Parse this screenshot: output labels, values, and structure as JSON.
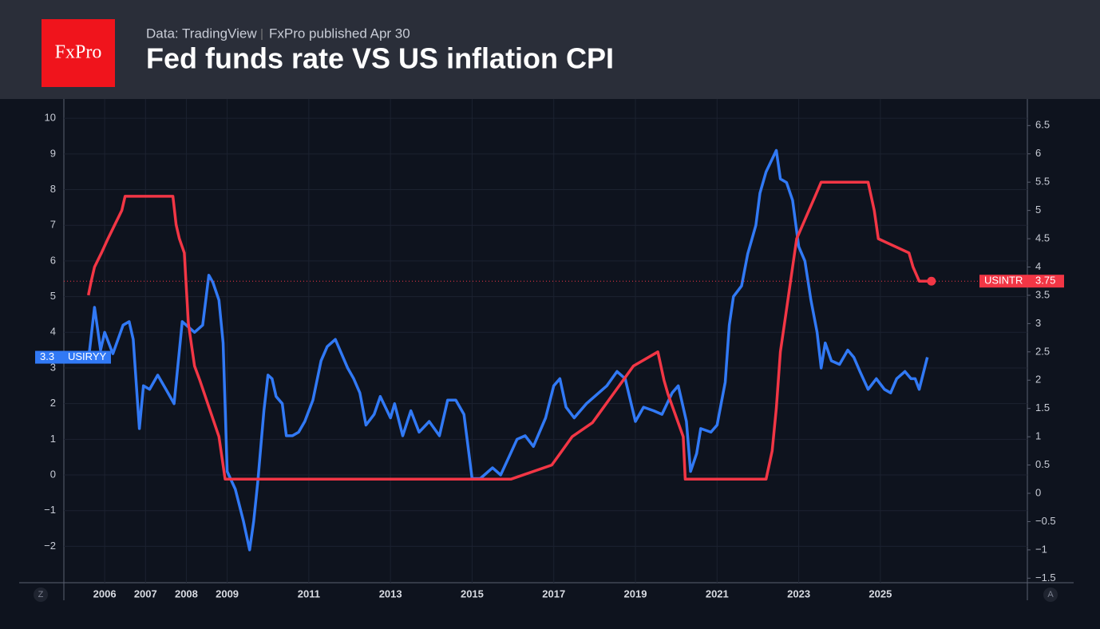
{
  "header": {
    "logo": "FxPro",
    "source": "Data: TradingView",
    "published": "FxPro published Apr 30",
    "title": "Fed funds rate VS US inflation CPI"
  },
  "controls": {
    "left": "Z",
    "right": "A"
  },
  "chart_data": {
    "type": "line",
    "xlim": [
      2005.0,
      2028.6
    ],
    "xticks": [
      2006,
      2007,
      2008,
      2009,
      2011,
      2013,
      2015,
      2017,
      2019,
      2021,
      2023,
      2025
    ],
    "ylim": [
      -3.02,
      10.54
    ],
    "yticks": [
      {
        "value": -2,
        "label": "−2"
      },
      {
        "value": -1,
        "label": "−1"
      },
      0,
      1,
      2,
      3,
      4,
      5,
      6,
      7,
      8,
      9,
      10
    ],
    "y2lim": [
      -1.58,
      6.97
    ],
    "y2ticks": [
      {
        "value": -1.5,
        "label": "−1.5"
      },
      {
        "value": -1,
        "label": "−1"
      },
      {
        "value": -0.5,
        "label": "−0.5"
      },
      0,
      0.5,
      1,
      1.5,
      2,
      2.5,
      3,
      3.5,
      4,
      4.5,
      5,
      5.5,
      6,
      6.5
    ],
    "grid": true,
    "series": [
      {
        "name": "USIRYY",
        "color": "#3179f5",
        "axis": "y",
        "x": [
          2005.6,
          2005.75,
          2005.9,
          2006.0,
          2006.2,
          2006.45,
          2006.6,
          2006.7,
          2006.8,
          2006.85,
          2006.95,
          2007.1,
          2007.3,
          2007.5,
          2007.7,
          2007.9,
          2008.2,
          2008.4,
          2008.55,
          2008.65,
          2008.8,
          2008.9,
          2009.0,
          2009.2,
          2009.4,
          2009.55,
          2009.65,
          2009.75,
          2009.9,
          2010.0,
          2010.1,
          2010.2,
          2010.35,
          2010.45,
          2010.6,
          2010.75,
          2010.9,
          2011.1,
          2011.3,
          2011.45,
          2011.65,
          2011.8,
          2011.95,
          2012.1,
          2012.25,
          2012.4,
          2012.6,
          2012.75,
          2013.0,
          2013.1,
          2013.3,
          2013.5,
          2013.7,
          2013.95,
          2014.2,
          2014.4,
          2014.6,
          2014.8,
          2015.0,
          2015.2,
          2015.5,
          2015.7,
          2015.9,
          2016.1,
          2016.3,
          2016.5,
          2016.8,
          2017.0,
          2017.15,
          2017.3,
          2017.5,
          2017.8,
          2018.0,
          2018.3,
          2018.55,
          2018.75,
          2019.0,
          2019.2,
          2019.45,
          2019.65,
          2019.9,
          2020.05,
          2020.25,
          2020.35,
          2020.5,
          2020.6,
          2020.85,
          2021.0,
          2021.2,
          2021.3,
          2021.4,
          2021.6,
          2021.75,
          2021.95,
          2022.05,
          2022.2,
          2022.45,
          2022.55,
          2022.7,
          2022.85,
          2023.0,
          2023.15,
          2023.3,
          2023.45,
          2023.55,
          2023.65,
          2023.8,
          2024.0,
          2024.2,
          2024.35,
          2024.5,
          2024.7,
          2024.9,
          2025.1,
          2025.25,
          2025.4,
          2025.6,
          2025.75,
          2025.85,
          2025.95,
          2026.15
        ],
        "values": [
          3.2,
          4.7,
          3.5,
          4.0,
          3.4,
          4.2,
          4.3,
          3.8,
          2.1,
          1.3,
          2.5,
          2.4,
          2.8,
          2.4,
          2.0,
          4.3,
          4.0,
          4.2,
          5.6,
          5.4,
          4.9,
          3.7,
          0.1,
          -0.4,
          -1.3,
          -2.1,
          -1.3,
          -0.2,
          1.8,
          2.8,
          2.7,
          2.2,
          2.0,
          1.1,
          1.1,
          1.2,
          1.5,
          2.1,
          3.2,
          3.6,
          3.8,
          3.4,
          3.0,
          2.7,
          2.3,
          1.4,
          1.7,
          2.2,
          1.6,
          2.0,
          1.1,
          1.8,
          1.2,
          1.5,
          1.1,
          2.1,
          2.1,
          1.7,
          -0.1,
          -0.1,
          0.2,
          0.0,
          0.5,
          1.0,
          1.1,
          0.8,
          1.6,
          2.5,
          2.7,
          1.9,
          1.6,
          2.0,
          2.2,
          2.5,
          2.9,
          2.7,
          1.5,
          1.9,
          1.8,
          1.7,
          2.3,
          2.5,
          1.5,
          0.1,
          0.6,
          1.3,
          1.2,
          1.4,
          2.6,
          4.2,
          5.0,
          5.3,
          6.2,
          7.0,
          7.9,
          8.5,
          9.1,
          8.3,
          8.2,
          7.7,
          6.4,
          6.0,
          4.9,
          4.0,
          3.0,
          3.7,
          3.2,
          3.1,
          3.5,
          3.3,
          2.9,
          2.4,
          2.7,
          2.4,
          2.3,
          2.7,
          2.9,
          2.7,
          2.7,
          2.4,
          3.3
        ]
      },
      {
        "name": "USINTR",
        "color": "#f23645",
        "axis": "y2",
        "x": [
          2005.6,
          2005.67,
          2005.75,
          2005.92,
          2006.08,
          2006.25,
          2006.42,
          2006.5,
          2007.67,
          2007.75,
          2007.83,
          2007.95,
          2008.05,
          2008.2,
          2008.33,
          2008.8,
          2008.95,
          2015.95,
          2016.95,
          2017.2,
          2017.45,
          2017.95,
          2018.2,
          2018.45,
          2018.7,
          2018.95,
          2019.55,
          2019.7,
          2019.8,
          2020.17,
          2020.22,
          2022.2,
          2022.35,
          2022.45,
          2022.55,
          2022.7,
          2022.85,
          2022.95,
          2023.1,
          2023.25,
          2023.4,
          2023.55,
          2024.7,
          2024.85,
          2024.95,
          2025.7,
          2025.8,
          2025.95,
          2026.25
        ],
        "values": [
          3.5,
          3.75,
          4.0,
          4.25,
          4.5,
          4.75,
          5.0,
          5.25,
          5.25,
          4.75,
          4.5,
          4.25,
          3.0,
          2.25,
          2.0,
          1.0,
          0.25,
          0.25,
          0.5,
          0.75,
          1.0,
          1.25,
          1.5,
          1.75,
          2.0,
          2.25,
          2.5,
          2.0,
          1.75,
          1.0,
          0.25,
          0.25,
          0.75,
          1.5,
          2.5,
          3.25,
          4.0,
          4.5,
          4.75,
          5.0,
          5.25,
          5.5,
          5.5,
          5.0,
          4.5,
          4.25,
          4.0,
          3.75,
          3.75
        ]
      }
    ]
  }
}
